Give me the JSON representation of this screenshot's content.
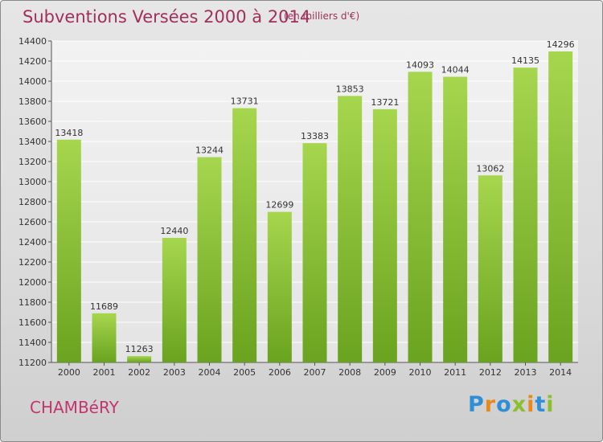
{
  "header": {
    "title": "Subventions Versées 2000 à 2014",
    "subtitle": "(en milliers d'€)"
  },
  "footer": {
    "commune": "CHAMBéRY",
    "brand": "Proxiti"
  },
  "colors": {
    "bar": "#7ab82a",
    "bar_light": "#a6d64e",
    "title": "#a0305a",
    "commune": "#c4356e",
    "background": "#dcdcdc"
  },
  "chart_data": {
    "type": "bar",
    "title": "Subventions Versées 2000 à 2014",
    "subtitle": "(en milliers d'€)",
    "xlabel": "",
    "ylabel": "",
    "categories": [
      "2000",
      "2001",
      "2002",
      "2003",
      "2004",
      "2005",
      "2006",
      "2007",
      "2008",
      "2009",
      "2010",
      "2011",
      "2012",
      "2013",
      "2014"
    ],
    "values": [
      13418,
      11689,
      11263,
      12440,
      13244,
      13731,
      12699,
      13383,
      13853,
      13721,
      14093,
      14044,
      13062,
      14135,
      14296
    ],
    "ylim": [
      11200,
      14400
    ],
    "yticks": [
      11200,
      11400,
      11600,
      11800,
      12000,
      12200,
      12400,
      12600,
      12800,
      13000,
      13200,
      13400,
      13600,
      13800,
      14000,
      14200,
      14400
    ],
    "grid": true,
    "data_labels": true,
    "legend": "none"
  }
}
